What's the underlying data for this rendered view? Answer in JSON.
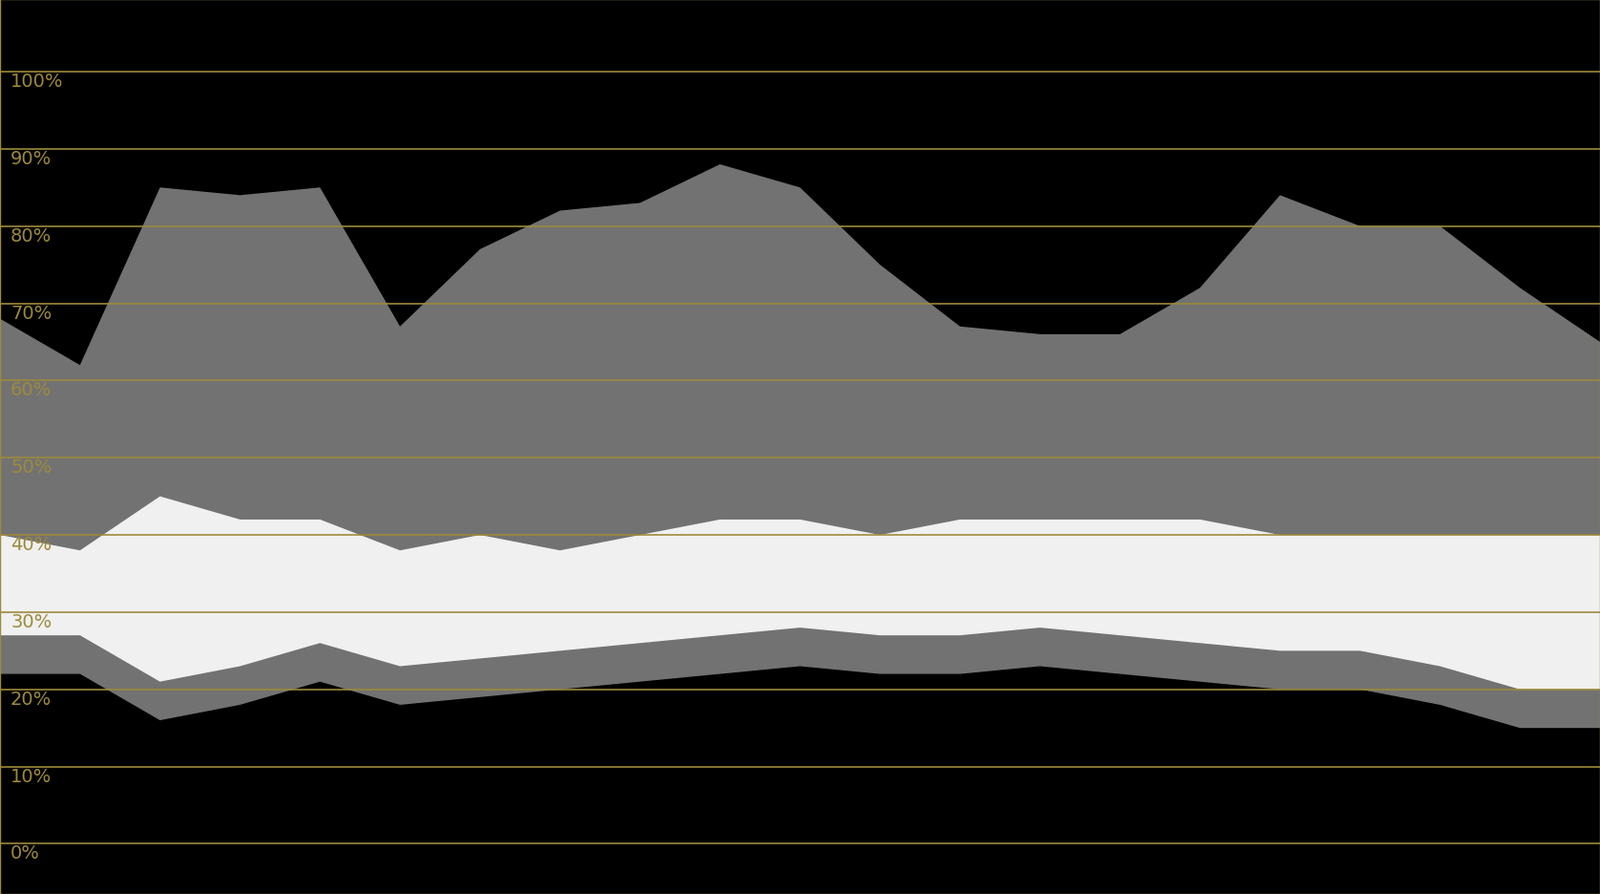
{
  "chart_data": {
    "type": "area",
    "x": [
      0,
      5,
      10,
      15,
      20,
      25,
      30,
      35,
      40,
      45,
      50,
      55,
      60,
      65,
      70,
      75,
      80,
      85,
      90,
      95,
      100
    ],
    "low": [
      22,
      22,
      16,
      18,
      21,
      18,
      19,
      20,
      21,
      22,
      23,
      22,
      22,
      23,
      22,
      21,
      20,
      20,
      18,
      15,
      15
    ],
    "high": [
      68,
      62,
      85,
      84,
      85,
      67,
      77,
      82,
      83,
      88,
      85,
      75,
      67,
      66,
      66,
      72,
      84,
      80,
      80,
      72,
      65
    ],
    "core_low": [
      27,
      27,
      21,
      23,
      26,
      23,
      24,
      25,
      26,
      27,
      28,
      27,
      27,
      28,
      27,
      26,
      25,
      25,
      23,
      20,
      20
    ],
    "core_high": [
      40,
      38,
      45,
      42,
      42,
      38,
      40,
      38,
      40,
      42,
      42,
      40,
      42,
      42,
      42,
      42,
      40,
      40,
      40,
      40,
      40
    ],
    "color": "#ffffff",
    "xlim": [
      0,
      100
    ],
    "ylim": [
      -6.5,
      109.4
    ],
    "yticks": [
      {
        "value": 0,
        "label": "0%"
      },
      {
        "value": 10,
        "label": "10%"
      },
      {
        "value": 20,
        "label": "20%"
      },
      {
        "value": 30,
        "label": "30%"
      },
      {
        "value": 40,
        "label": "40%"
      },
      {
        "value": 50,
        "label": "50%"
      },
      {
        "value": 60,
        "label": "60%"
      },
      {
        "value": 70,
        "label": "70%"
      },
      {
        "value": 80,
        "label": "80%"
      },
      {
        "value": 90,
        "label": "90%"
      },
      {
        "value": 100,
        "label": "100%"
      }
    ],
    "grid": true,
    "tick_labels": "y"
  }
}
